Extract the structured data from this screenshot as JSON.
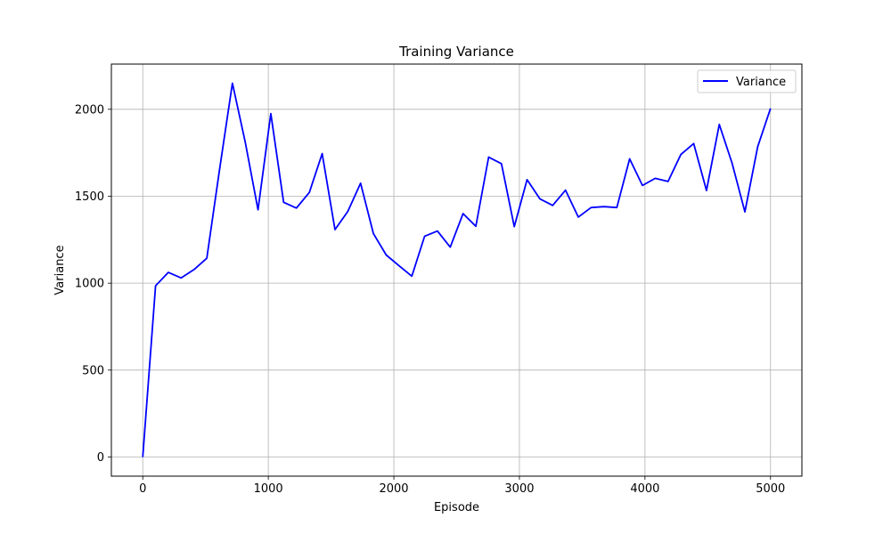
{
  "chart_data": {
    "type": "line",
    "title": "Training Variance",
    "xlabel": "Episode",
    "ylabel": "Variance",
    "xlim": [
      -250,
      5250
    ],
    "ylim": [
      -110,
      2260
    ],
    "xticks": [
      0,
      1000,
      2000,
      3000,
      4000,
      5000
    ],
    "yticks": [
      0,
      500,
      1000,
      1500,
      2000
    ],
    "grid": true,
    "legend_position": "top-right",
    "series": [
      {
        "name": "Variance",
        "color": "#0000ff",
        "x": [
          0,
          102,
          204,
          306,
          408,
          510,
          612,
          714,
          816,
          918,
          1020,
          1122,
          1224,
          1327,
          1429,
          1531,
          1633,
          1735,
          1837,
          1939,
          2041,
          2143,
          2245,
          2347,
          2449,
          2551,
          2653,
          2755,
          2857,
          2959,
          3061,
          3163,
          3265,
          3367,
          3469,
          3571,
          3673,
          3776,
          3878,
          3980,
          4082,
          4184,
          4286,
          4388,
          4490,
          4592,
          4694,
          4796,
          4898,
          5000
        ],
        "values": [
          0,
          985,
          1062,
          1030,
          1078,
          1143,
          1655,
          2150,
          1812,
          1422,
          1975,
          1465,
          1432,
          1522,
          1745,
          1308,
          1412,
          1575,
          1285,
          1162,
          1100,
          1040,
          1270,
          1300,
          1207,
          1400,
          1327,
          1725,
          1687,
          1325,
          1595,
          1485,
          1447,
          1535,
          1380,
          1435,
          1440,
          1435,
          1715,
          1562,
          1603,
          1585,
          1740,
          1803,
          1533,
          1913,
          1690,
          1410,
          1785,
          2005
        ]
      }
    ]
  }
}
